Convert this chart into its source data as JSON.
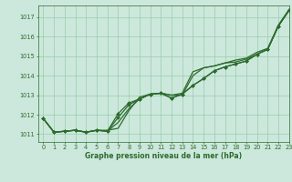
{
  "background_color": "#cce8dc",
  "grid_color": "#99ccaa",
  "line_color": "#2d6b2d",
  "title": "Graphe pression niveau de la mer (hPa)",
  "xlim": [
    -0.5,
    23
  ],
  "ylim": [
    1010.6,
    1017.6
  ],
  "yticks": [
    1011,
    1012,
    1013,
    1014,
    1015,
    1016,
    1017
  ],
  "xticks": [
    0,
    1,
    2,
    3,
    4,
    5,
    6,
    7,
    8,
    9,
    10,
    11,
    12,
    13,
    14,
    15,
    16,
    17,
    18,
    19,
    20,
    21,
    22,
    23
  ],
  "series": [
    {
      "y": [
        1011.8,
        1011.1,
        1011.15,
        1011.2,
        1011.1,
        1011.2,
        1011.2,
        1011.3,
        1012.2,
        1012.9,
        1013.05,
        1013.1,
        1013.0,
        1013.1,
        1014.2,
        1014.4,
        1014.5,
        1014.65,
        1014.7,
        1014.85,
        1015.1,
        1015.35,
        1016.55,
        1017.35
      ],
      "marker": false,
      "lw": 0.9
    },
    {
      "y": [
        1011.8,
        1011.1,
        1011.15,
        1011.2,
        1011.1,
        1011.2,
        1011.15,
        1011.85,
        1012.5,
        1012.8,
        1013.05,
        1013.1,
        1012.85,
        1013.05,
        1013.5,
        1013.85,
        1014.25,
        1014.45,
        1014.6,
        1014.75,
        1015.1,
        1015.35,
        1016.55,
        1017.35
      ],
      "marker": true,
      "lw": 0.9
    },
    {
      "y": [
        1011.8,
        1011.1,
        1011.15,
        1011.2,
        1011.1,
        1011.2,
        1011.15,
        1012.05,
        1012.6,
        1012.8,
        1013.05,
        1013.1,
        1012.85,
        1013.05,
        1013.5,
        1013.85,
        1014.25,
        1014.45,
        1014.6,
        1014.75,
        1015.1,
        1015.35,
        1016.55,
        1017.35
      ],
      "marker": true,
      "lw": 0.9
    },
    {
      "y": [
        1011.8,
        1011.1,
        1011.15,
        1011.2,
        1011.1,
        1011.2,
        1011.15,
        1011.6,
        1012.3,
        1012.8,
        1013.05,
        1013.1,
        1013.0,
        1013.0,
        1014.0,
        1014.4,
        1014.5,
        1014.65,
        1014.8,
        1014.9,
        1015.2,
        1015.4,
        1016.6,
        1017.4
      ],
      "marker": false,
      "lw": 0.9
    }
  ],
  "title_fontsize": 5.5,
  "tick_fontsize": 4.8,
  "marker_size": 2.0
}
